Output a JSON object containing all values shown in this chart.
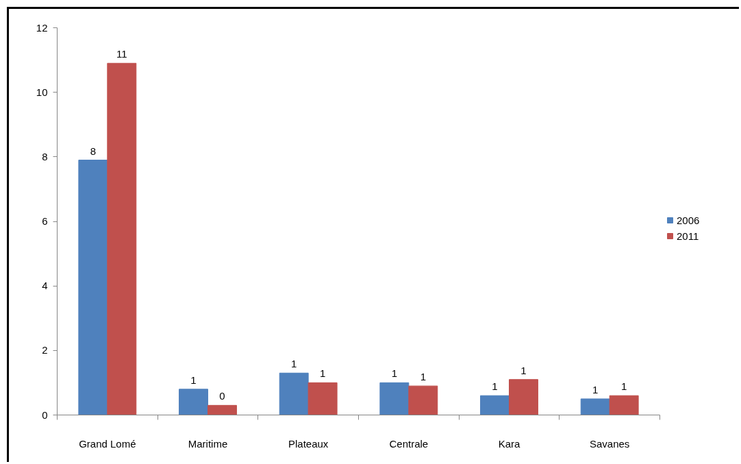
{
  "chart_data": {
    "type": "bar",
    "categories": [
      "Grand Lomé",
      "Maritime",
      "Plateaux",
      "Centrale",
      "Kara",
      "Savanes"
    ],
    "series": [
      {
        "name": "2006",
        "color": "#4f81bd",
        "values": [
          7.9,
          0.8,
          1.3,
          1.0,
          0.6,
          0.5
        ],
        "value_labels": [
          "8",
          "1",
          "1",
          "1",
          "1",
          "1"
        ]
      },
      {
        "name": "2011",
        "color": "#c0504d",
        "values": [
          10.9,
          0.3,
          1.0,
          0.9,
          1.1,
          0.6
        ],
        "value_labels": [
          "11",
          "0",
          "1",
          "1",
          "1",
          "1"
        ]
      }
    ],
    "ylim": [
      0,
      12
    ],
    "yticks": [
      0,
      2,
      4,
      6,
      8,
      10,
      12
    ],
    "legend": "right"
  }
}
